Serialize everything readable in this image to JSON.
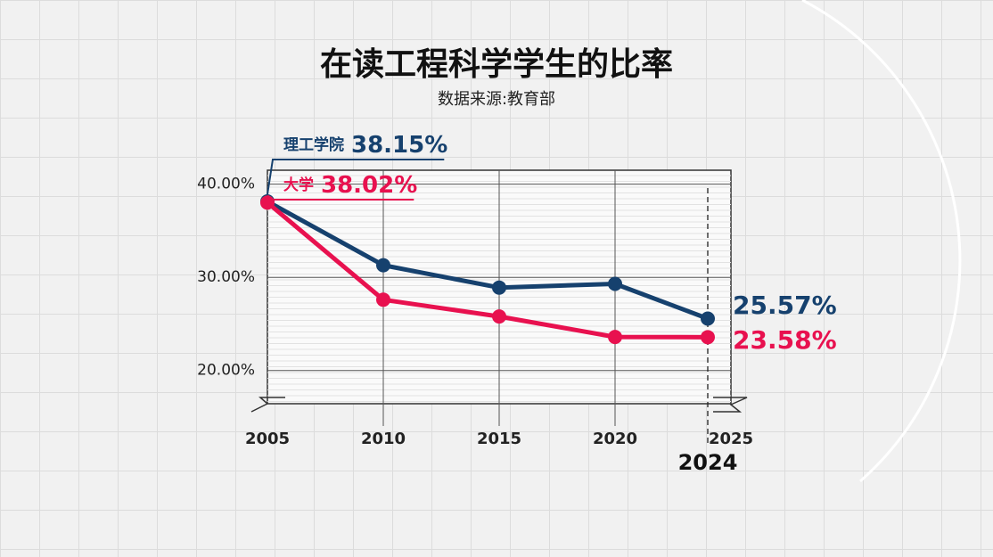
{
  "chart_data": {
    "type": "line",
    "title": "在读工程科学学生的比率",
    "subtitle": "数据来源:教育部",
    "x": [
      2005,
      2010,
      2015,
      2020,
      2024
    ],
    "series": [
      {
        "name": "理工学院",
        "color": "#16416e",
        "values": [
          38.15,
          31.3,
          28.9,
          29.3,
          25.57
        ],
        "value_labels": [
          "38.15%",
          null,
          null,
          null,
          "25.57%"
        ]
      },
      {
        "name": "大学",
        "color": "#e8114f",
        "values": [
          38.02,
          27.6,
          25.8,
          23.6,
          23.58
        ],
        "value_labels": [
          "38.02%",
          null,
          null,
          null,
          "23.58%"
        ]
      }
    ],
    "xlim": [
      2005,
      2025
    ],
    "xticks": [
      2005,
      2010,
      2015,
      2020,
      2025
    ],
    "highlight_x": 2024,
    "ylim": [
      15,
      41.5
    ],
    "yticks": [
      {
        "value": 20,
        "label": "20.00%"
      },
      {
        "value": 30,
        "label": "30.00%"
      },
      {
        "value": 40,
        "label": "40.00%"
      }
    ],
    "grid": true
  }
}
